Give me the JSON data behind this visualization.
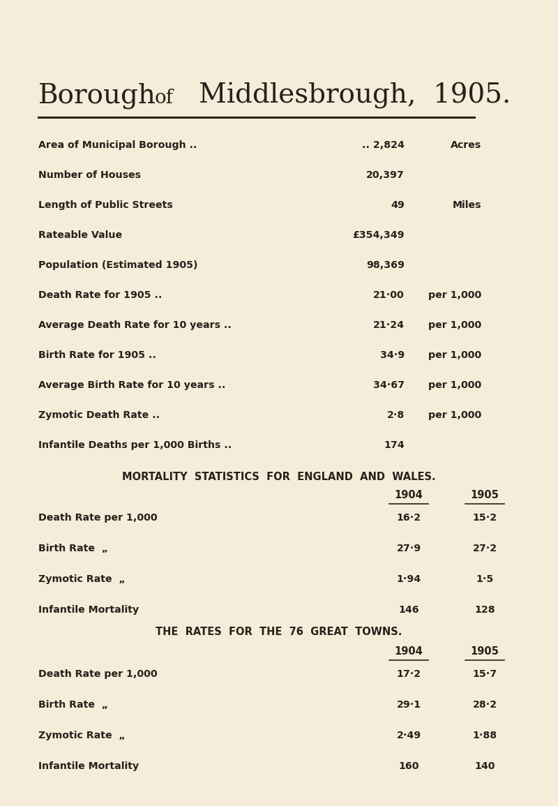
{
  "bg_color": "#f5edda",
  "text_color": "#2a1f1a",
  "stats": [
    {
      "label": "Area of Municipal Borough ..",
      "value": ".. 2,824",
      "unit": "Acres"
    },
    {
      "label": "Number of Houses",
      "value": "20,397",
      "unit": ""
    },
    {
      "label": "Length of Public Streets",
      "value": "49",
      "unit": "Miles"
    },
    {
      "label": "Rateable Value",
      "value": "£354,349",
      "unit": ""
    },
    {
      "label": "Population (Estimated 1905)",
      "value": "98,369",
      "unit": ""
    },
    {
      "label": "Death Rate for 1905 ..",
      "value": "21·00",
      "unit": "per 1,000"
    },
    {
      "label": "Average Death Rate for 10 years ..",
      "value": "21·24",
      "unit": "per 1,000"
    },
    {
      "label": "Birth Rate for 1905 ..",
      "value": "34·9",
      "unit": "per 1,000"
    },
    {
      "label": "Average Birth Rate for 10 years ..",
      "value": "34·67",
      "unit": "per 1,000"
    },
    {
      "label": "Zymotic Death Rate ..",
      "value": "2·8",
      "unit": "per 1,000"
    },
    {
      "label": "Infantile Deaths per 1,000 Births ..",
      "value": "174",
      "unit": ""
    }
  ],
  "section1_title": "MORTALITY  STATISTICS  FOR  ENGLAND  AND  WALES.",
  "section1_rows": [
    {
      "label": "Death Rate per 1,000",
      "suffix": "",
      "v1904": "16·2",
      "v1905": "15·2"
    },
    {
      "label": "Birth Rate",
      "suffix": "  „",
      "v1904": "27·9",
      "v1905": "27·2"
    },
    {
      "label": "Zymotic Rate",
      "suffix": "  „",
      "v1904": "1·94",
      "v1905": "1·5"
    },
    {
      "label": "Infantile Mortality",
      "suffix": "",
      "v1904": "146",
      "v1905": "128"
    }
  ],
  "section2_title": "THE  RATES  FOR  THE  76  GREAT  TOWNS.",
  "section2_rows": [
    {
      "label": "Death Rate per 1,000",
      "suffix": "",
      "v1904": "17·2",
      "v1905": "15·7"
    },
    {
      "label": "Birth Rate",
      "suffix": "  „",
      "v1904": "29·1",
      "v1905": "28·2"
    },
    {
      "label": "Zymotic Rate",
      "suffix": "  „",
      "v1904": "2·49",
      "v1905": "1·88"
    },
    {
      "label": "Infantile Mortality",
      "suffix": "",
      "v1904": "160",
      "v1905": "140"
    }
  ]
}
